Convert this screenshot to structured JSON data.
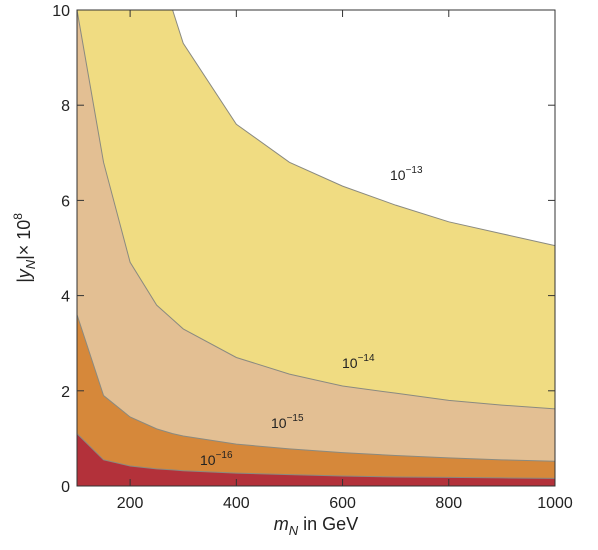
{
  "chart_data": {
    "type": "area",
    "x_label_parts": [
      "m",
      "N",
      " in GeV"
    ],
    "y_label_parts": [
      "|y",
      "N",
      "|× 10",
      "8"
    ],
    "x": [
      100,
      150,
      200,
      250,
      280,
      300,
      400,
      500,
      600,
      700,
      800,
      900,
      1000
    ],
    "series": [
      {
        "name": "10",
        "exponent": "−13",
        "color": "#f0dc82",
        "values": [
          null,
          null,
          null,
          null,
          10,
          9.3,
          7.6,
          6.8,
          6.3,
          5.9,
          5.55,
          5.3,
          5.05
        ]
      },
      {
        "name": "10",
        "exponent": "−14",
        "color": "#e3bf93",
        "values": [
          10,
          6.8,
          4.7,
          3.8,
          3.5,
          3.3,
          2.7,
          2.35,
          2.1,
          1.95,
          1.8,
          1.7,
          1.62
        ]
      },
      {
        "name": "10",
        "exponent": "−15",
        "color": "#d6883a",
        "values": [
          3.6,
          1.9,
          1.45,
          1.2,
          1.1,
          1.05,
          0.88,
          0.78,
          0.7,
          0.64,
          0.59,
          0.55,
          0.52
        ]
      },
      {
        "name": "10",
        "exponent": "−16",
        "color": "#b3313a",
        "values": [
          1.1,
          0.55,
          0.42,
          0.36,
          0.34,
          0.32,
          0.27,
          0.24,
          0.21,
          0.19,
          0.18,
          0.17,
          0.16
        ]
      }
    ],
    "xlim": [
      100,
      1000
    ],
    "ylim": [
      0,
      10
    ],
    "xticks": [
      200,
      400,
      600,
      800,
      1000
    ],
    "yticks": [
      0,
      2,
      4,
      6,
      8,
      10
    ]
  }
}
